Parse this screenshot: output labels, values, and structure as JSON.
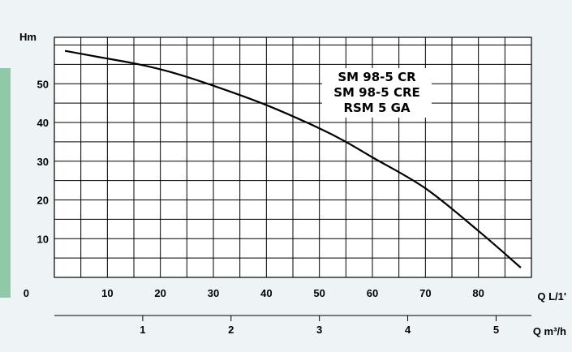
{
  "chart_data": {
    "type": "line",
    "title": "",
    "models": [
      "SM 98-5 CR",
      "SM 98-5 CRE",
      "RSM 5 GA"
    ],
    "ylabel": "Hm",
    "xlabel_primary": "Q L/1'",
    "xlabel_secondary": "Q m³/h",
    "ylim": [
      0,
      62
    ],
    "xlim": [
      0,
      90
    ],
    "secondary_xlim": [
      0,
      5.4
    ],
    "y_ticks": [
      0,
      10,
      20,
      30,
      40,
      50
    ],
    "x_ticks": [
      10,
      20,
      30,
      40,
      50,
      60,
      70,
      80
    ],
    "secondary_x_ticks": [
      1,
      2,
      3,
      4,
      5
    ],
    "grid": true,
    "series": [
      {
        "name": "",
        "x": [
          2,
          8,
          16,
          22,
          30,
          40,
          50,
          55,
          60,
          70,
          80,
          88
        ],
        "y": [
          58.5,
          57,
          55,
          53,
          49.5,
          44.5,
          38.5,
          35,
          31,
          23,
          12,
          2.5
        ]
      }
    ]
  },
  "colors": {
    "background": "#eef4f5",
    "plot": "#ffffff",
    "grid": "#000000",
    "curve": "#000000",
    "accent": "#8fc9a8"
  }
}
